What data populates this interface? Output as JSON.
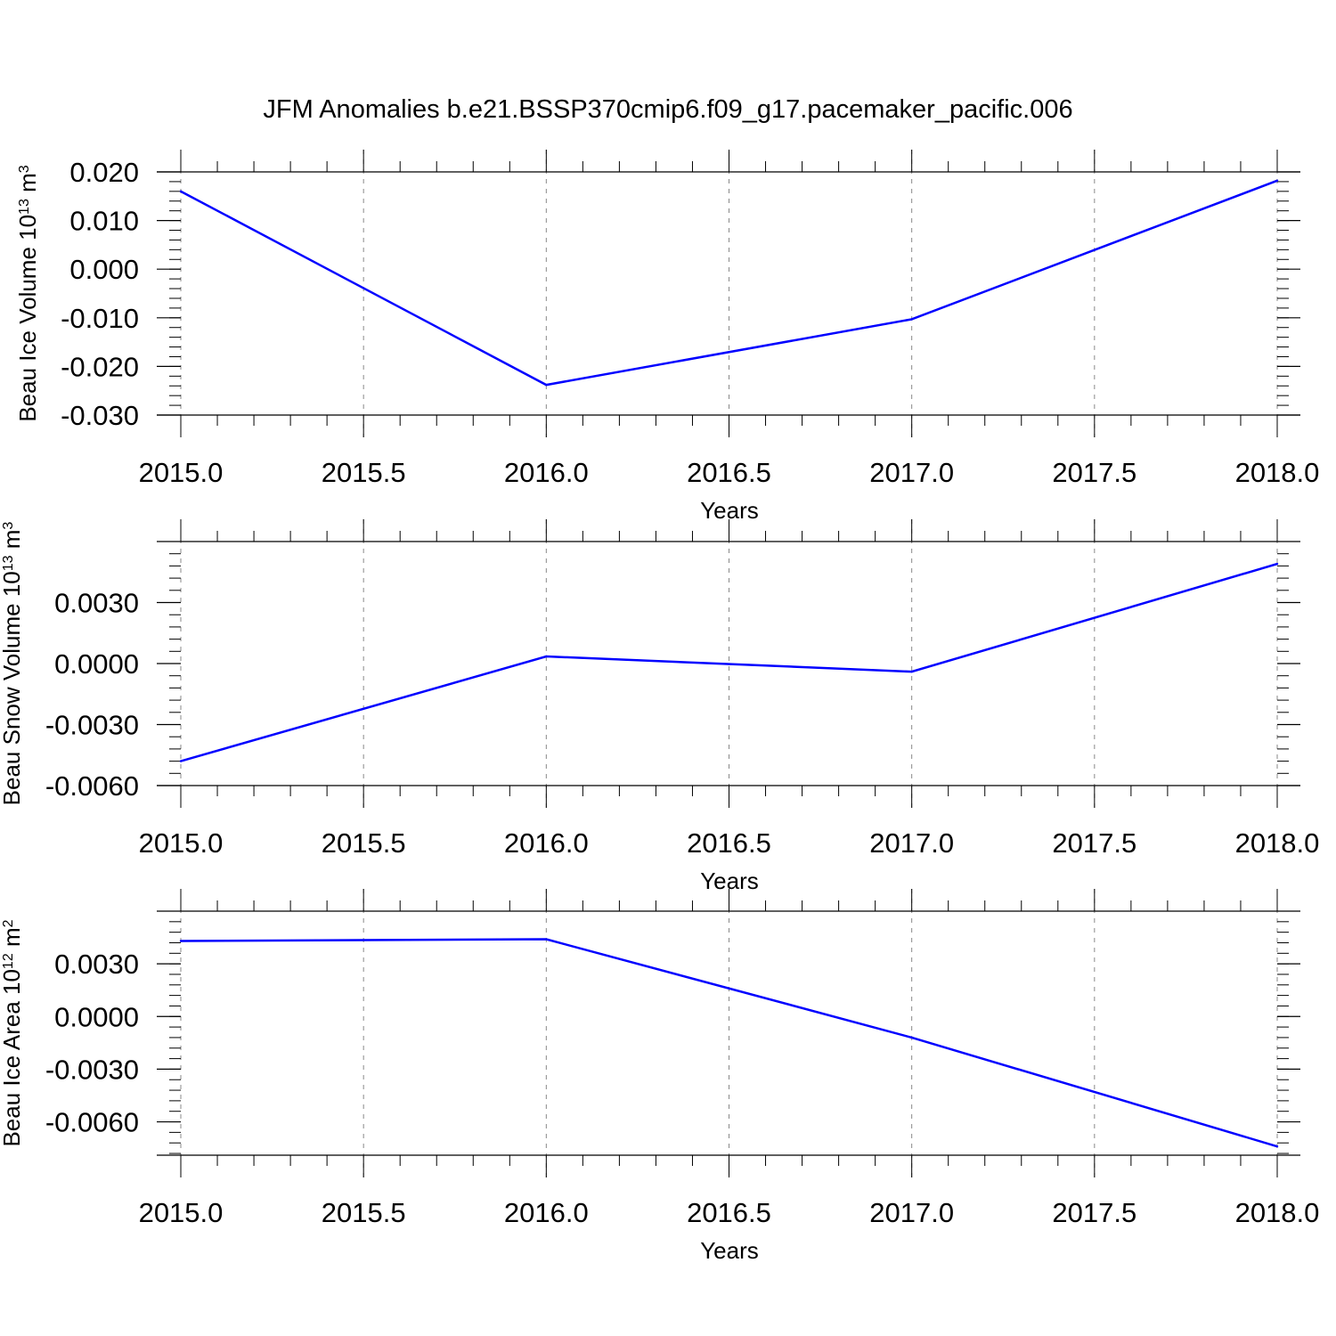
{
  "title": "JFM Anomalies b.e21.BSSP370cmip6.f09_g17.pacemaker_pacific.006",
  "colors": {
    "line": "#0000ff",
    "axis": "#000000",
    "grid": "#888888",
    "background": "#ffffff"
  },
  "chart_data": [
    {
      "type": "line",
      "title": "JFM Anomalies b.e21.BSSP370cmip6.f09_g17.pacemaker_pacific.006",
      "xlabel": "Years",
      "ylabel": {
        "text": "Beau Ice Volume 10",
        "exp": "13",
        "unit": " m",
        "unit_exp": "3"
      },
      "x": [
        2015,
        2016,
        2017,
        2018
      ],
      "series": [
        {
          "values": [
            0.016,
            -0.0238,
            -0.0103,
            0.0182
          ]
        }
      ],
      "xlim": [
        2015,
        2018
      ],
      "ylim": [
        -0.03,
        0.02
      ],
      "xticks": [
        "2015.0",
        "2015.5",
        "2016.0",
        "2016.5",
        "2017.0",
        "2017.5",
        "2018.0"
      ],
      "yticks": [
        "-0.030",
        "-0.020",
        "-0.010",
        "0.000",
        "0.010",
        "0.020"
      ],
      "ytick_values": [
        -0.03,
        -0.02,
        -0.01,
        0.0,
        0.01,
        0.02
      ],
      "grid": "vertical dashed"
    },
    {
      "type": "line",
      "xlabel": "Years",
      "ylabel": {
        "text": "Beau Snow Volume 10",
        "exp": "13",
        "unit": " m",
        "unit_exp": "3"
      },
      "x": [
        2015,
        2016,
        2017,
        2018
      ],
      "series": [
        {
          "values": [
            -0.0048,
            0.00035,
            -0.0004,
            0.0049
          ]
        }
      ],
      "xlim": [
        2015,
        2018
      ],
      "ylim": [
        -0.006,
        0.006
      ],
      "xticks": [
        "2015.0",
        "2015.5",
        "2016.0",
        "2016.5",
        "2017.0",
        "2017.5",
        "2018.0"
      ],
      "yticks": [
        "-0.0060",
        "-0.0030",
        "0.0000",
        "0.0030"
      ],
      "ytick_values": [
        -0.006,
        -0.003,
        0.0,
        0.003
      ],
      "grid": "vertical dashed"
    },
    {
      "type": "line",
      "xlabel": "Years",
      "ylabel": {
        "text": "Beau Ice Area 10",
        "exp": "12",
        "unit": " m",
        "unit_exp": "2"
      },
      "x": [
        2015,
        2016,
        2017,
        2018
      ],
      "series": [
        {
          "values": [
            0.0043,
            0.0044,
            -0.0012,
            -0.0074
          ]
        }
      ],
      "xlim": [
        2015,
        2018
      ],
      "ylim": [
        -0.0079,
        0.006
      ],
      "xticks": [
        "2015.0",
        "2015.5",
        "2016.0",
        "2016.5",
        "2017.0",
        "2017.5",
        "2018.0"
      ],
      "yticks": [
        "-0.0060",
        "-0.0030",
        "0.0000",
        "0.0030"
      ],
      "ytick_values": [
        -0.006,
        -0.003,
        0.0,
        0.003
      ],
      "grid": "vertical dashed"
    }
  ]
}
